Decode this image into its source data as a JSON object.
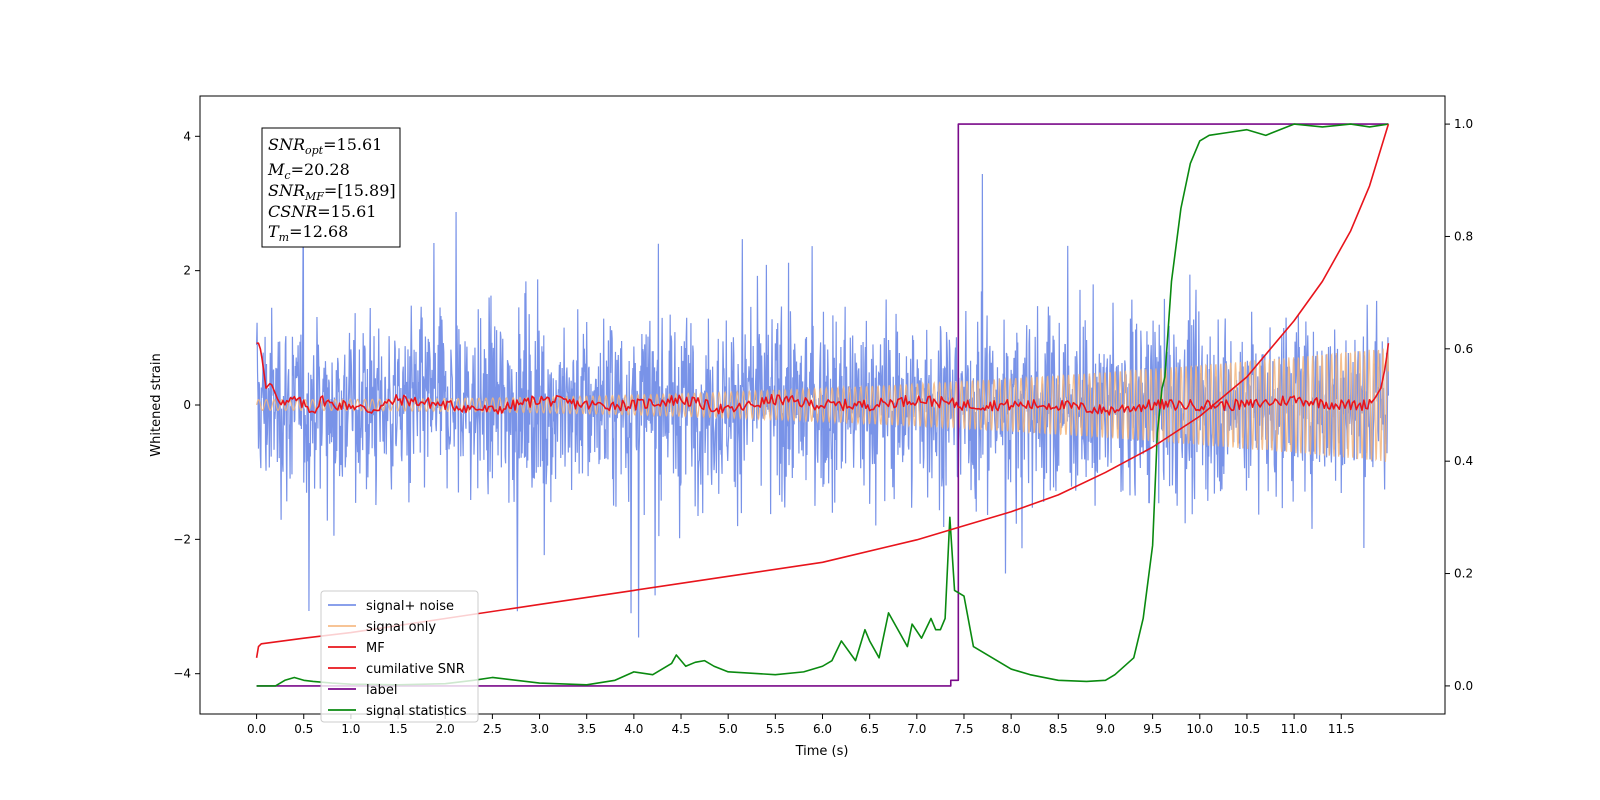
{
  "chart_data": {
    "type": "line",
    "xlabel": "Time (s)",
    "ylabel": "Whitened strain",
    "xlim": [
      -0.6,
      12.6
    ],
    "ylim": [
      -4.6,
      4.6
    ],
    "y2lim": [
      -0.05,
      1.05
    ],
    "x_ticks": [
      0.0,
      0.5,
      1.0,
      1.5,
      2.0,
      2.5,
      3.0,
      3.5,
      4.0,
      4.5,
      5.0,
      5.5,
      6.0,
      6.5,
      7.0,
      7.5,
      8.0,
      8.5,
      9.0,
      9.5,
      10.0,
      10.5,
      11.0,
      11.5
    ],
    "x_tick_labels": [
      "0.0",
      "0.5",
      "1.0",
      "1.5",
      "2.0",
      "2.5",
      "3.0",
      "3.5",
      "4.0",
      "4.5",
      "5.0",
      "5.5",
      "6.0",
      "6.5",
      "7.0",
      "7.5",
      "8.0",
      "8.5",
      "9.0",
      "9.5",
      "10.0",
      "10.5",
      "11.0",
      "11.5"
    ],
    "y_ticks": [
      -4,
      -2,
      0,
      2,
      4
    ],
    "y_tick_labels": [
      "−4",
      "−2",
      "0",
      "2",
      "4"
    ],
    "y2_ticks": [
      0.0,
      0.2,
      0.4,
      0.6,
      0.8,
      1.0
    ],
    "y2_tick_labels": [
      "0.0",
      "0.2",
      "0.4",
      "0.6",
      "0.8",
      "1.0"
    ],
    "grid": false,
    "legend_position": "lower-left",
    "series": [
      {
        "name": "signal+ noise",
        "axis": "left",
        "color": "#6a87e6",
        "kind": "noise",
        "amplitude_range": [
          -3.9,
          4.15
        ],
        "x_range": [
          0.0,
          12.0
        ]
      },
      {
        "name": "signal only",
        "axis": "left",
        "color": "#f5b57a",
        "kind": "chirp",
        "amplitude_start": 0.08,
        "amplitude_end": 0.85,
        "x_range": [
          0.0,
          12.0
        ]
      },
      {
        "name": "MF",
        "axis": "right",
        "color": "#e8141c",
        "x": [
          0.0,
          0.03,
          0.06,
          0.1,
          0.15,
          0.2,
          0.25,
          0.3,
          0.4,
          0.5,
          0.6,
          0.7,
          0.8,
          1.0,
          1.2,
          1.5,
          2.0,
          2.5,
          3.0,
          3.5,
          4.0,
          4.5,
          5.0,
          5.5,
          6.0,
          6.5,
          7.0,
          7.5,
          8.0,
          8.5,
          9.0,
          9.5,
          10.0,
          10.5,
          11.0,
          11.5,
          11.75,
          11.85,
          11.92,
          11.97,
          12.0
        ],
        "values": [
          0.61,
          0.61,
          0.58,
          0.53,
          0.54,
          0.52,
          0.51,
          0.5,
          0.51,
          0.5,
          0.49,
          0.51,
          0.5,
          0.5,
          0.49,
          0.51,
          0.5,
          0.49,
          0.51,
          0.5,
          0.5,
          0.51,
          0.49,
          0.51,
          0.5,
          0.5,
          0.51,
          0.5,
          0.5,
          0.5,
          0.49,
          0.5,
          0.5,
          0.5,
          0.51,
          0.5,
          0.5,
          0.51,
          0.53,
          0.57,
          0.61
        ]
      },
      {
        "name": "cumilative SNR",
        "axis": "right",
        "color": "#e8141c",
        "x": [
          0.0,
          0.02,
          0.05,
          0.5,
          1.0,
          2.0,
          3.0,
          4.0,
          5.0,
          6.0,
          7.0,
          7.5,
          8.0,
          8.5,
          9.0,
          9.5,
          10.0,
          10.5,
          11.0,
          11.3,
          11.6,
          11.8,
          12.0
        ],
        "values": [
          0.05,
          0.07,
          0.075,
          0.085,
          0.095,
          0.12,
          0.145,
          0.17,
          0.195,
          0.22,
          0.26,
          0.285,
          0.31,
          0.34,
          0.38,
          0.425,
          0.48,
          0.55,
          0.65,
          0.72,
          0.81,
          0.89,
          1.0
        ]
      },
      {
        "name": "label",
        "axis": "right",
        "color": "#7a0a8a",
        "x": [
          0.0,
          7.36,
          7.36,
          7.44,
          7.44,
          12.0
        ],
        "values": [
          0.0,
          0.0,
          0.01,
          0.01,
          1.0,
          1.0
        ]
      },
      {
        "name": "signal statistics",
        "axis": "right",
        "color": "#0a8a10",
        "x": [
          0.0,
          0.2,
          0.3,
          0.4,
          0.5,
          0.6,
          0.8,
          1.0,
          1.5,
          2.0,
          2.3,
          2.5,
          3.0,
          3.5,
          3.8,
          4.0,
          4.2,
          4.4,
          4.45,
          4.55,
          4.65,
          4.75,
          4.85,
          5.0,
          5.5,
          5.8,
          6.0,
          6.1,
          6.2,
          6.35,
          6.45,
          6.5,
          6.6,
          6.7,
          6.9,
          6.95,
          7.05,
          7.15,
          7.2,
          7.25,
          7.3,
          7.35,
          7.4,
          7.5,
          7.6,
          7.8,
          8.0,
          8.2,
          8.5,
          8.8,
          9.0,
          9.1,
          9.3,
          9.4,
          9.5,
          9.55,
          9.6,
          9.63,
          9.7,
          9.8,
          9.9,
          10.0,
          10.1,
          10.3,
          10.5,
          10.7,
          11.0,
          11.3,
          11.6,
          11.8,
          12.0
        ],
        "values": [
          0.0,
          0.0,
          0.01,
          0.015,
          0.01,
          0.008,
          0.005,
          0.003,
          0.002,
          0.004,
          0.01,
          0.015,
          0.005,
          0.002,
          0.01,
          0.025,
          0.02,
          0.04,
          0.055,
          0.035,
          0.042,
          0.045,
          0.035,
          0.025,
          0.02,
          0.025,
          0.035,
          0.045,
          0.08,
          0.045,
          0.1,
          0.08,
          0.05,
          0.13,
          0.07,
          0.11,
          0.085,
          0.12,
          0.1,
          0.1,
          0.12,
          0.3,
          0.17,
          0.16,
          0.07,
          0.05,
          0.03,
          0.02,
          0.01,
          0.008,
          0.01,
          0.02,
          0.05,
          0.12,
          0.25,
          0.45,
          0.53,
          0.55,
          0.72,
          0.85,
          0.93,
          0.97,
          0.98,
          0.985,
          0.99,
          0.98,
          1.0,
          0.995,
          1.0,
          0.995,
          1.0
        ]
      }
    ]
  },
  "stats_box": {
    "snr_opt": {
      "sym": "SNR",
      "sub": "opt",
      "value": "=15.61"
    },
    "mc": {
      "sym": "M",
      "sub": "c",
      "value": "=20.28"
    },
    "snr_mf": {
      "sym": "SNR",
      "sub": "MF",
      "value": "=[15.89]"
    },
    "csnr": {
      "sym": "CSNR",
      "sub": "",
      "value": "=15.61"
    },
    "tm": {
      "sym": "T",
      "sub": "m",
      "value": "=12.68"
    }
  }
}
